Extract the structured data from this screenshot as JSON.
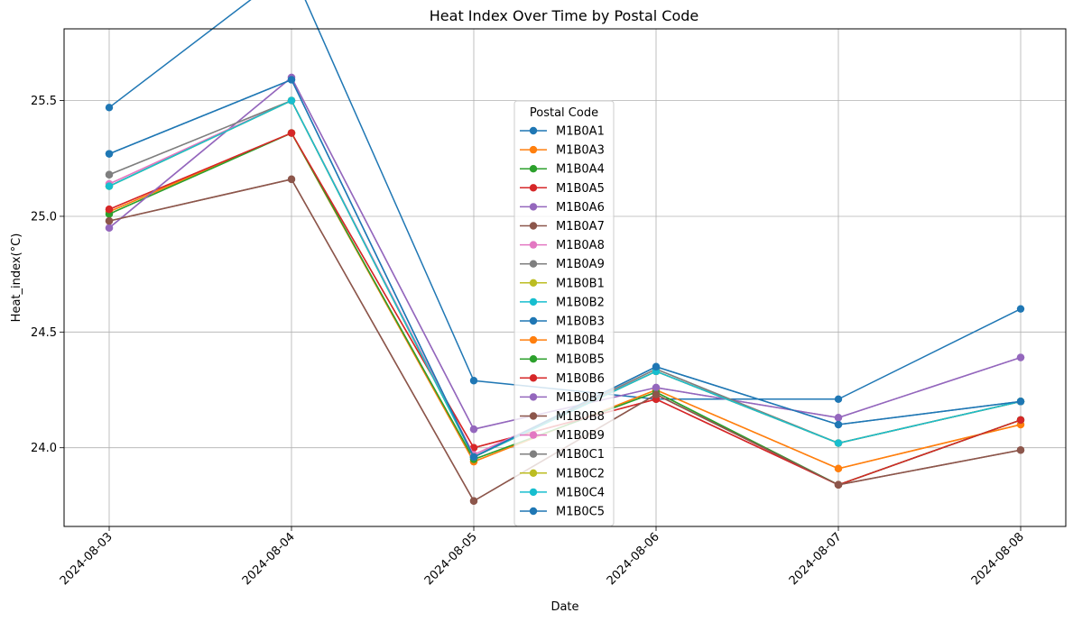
{
  "chart_data": {
    "type": "line",
    "title": "Heat Index Over Time by Postal Code",
    "xlabel": "Date",
    "ylabel": "Heat_index(°C)",
    "x": [
      "2024-08-03",
      "2024-08-04",
      "2024-08-05",
      "2024-08-06",
      "2024-08-07",
      "2024-08-08"
    ],
    "ylim": [
      23.66,
      25.81
    ],
    "yticks": [
      "24.0",
      "24.5",
      "25.0",
      "25.5",
      "26.0"
    ],
    "grid": true,
    "legend": {
      "title": "Postal Code",
      "placement": "center"
    },
    "marker": "circle",
    "series": [
      {
        "name": "M1B0A1",
        "color": "#1f77b4",
        "values": [
          25.47,
          26.07,
          24.29,
          24.21,
          24.21,
          24.6
        ]
      },
      {
        "name": "M1B0A3",
        "color": "#ff7f0e",
        "values": [
          25.02,
          25.36,
          23.94,
          24.25,
          23.91,
          24.1
        ]
      },
      {
        "name": "M1B0A4",
        "color": "#2ca02c",
        "values": [
          25.01,
          25.36,
          23.95,
          24.24,
          23.84,
          24.12
        ]
      },
      {
        "name": "M1B0A5",
        "color": "#d62728",
        "values": [
          25.03,
          25.36,
          24.0,
          24.21,
          23.84,
          24.12
        ]
      },
      {
        "name": "M1B0A6",
        "color": "#9467bd",
        "values": [
          24.95,
          25.6,
          24.08,
          24.26,
          24.13,
          24.39
        ]
      },
      {
        "name": "M1B0A7",
        "color": "#8c564b",
        "values": [
          24.98,
          25.16,
          23.77,
          24.23,
          23.84,
          23.99
        ]
      },
      {
        "name": "M1B0A8",
        "color": "#e377c2",
        "values": [
          25.14,
          25.5,
          23.97,
          24.33,
          24.02,
          24.2
        ]
      },
      {
        "name": "M1B0A9",
        "color": "#7f7f7f",
        "values": [
          25.18,
          25.5,
          23.96,
          24.34,
          24.02,
          24.2
        ]
      },
      {
        "name": "M1B0B1",
        "color": "#bcbd22",
        "values": [
          25.13,
          25.5,
          23.96,
          24.33,
          24.02,
          24.2
        ]
      },
      {
        "name": "M1B0B2",
        "color": "#17becf",
        "values": [
          25.13,
          25.5,
          23.96,
          24.33,
          24.02,
          24.2
        ]
      },
      {
        "name": "M1B0B3",
        "color": "#1f77b4",
        "values": [
          25.27,
          25.59,
          23.96,
          24.35,
          24.1,
          24.2
        ]
      },
      {
        "name": "M1B0B4",
        "color": "#ff7f0e",
        "values": [
          25.02,
          25.36,
          23.94,
          24.25,
          23.91,
          24.1
        ]
      },
      {
        "name": "M1B0B5",
        "color": "#2ca02c",
        "values": [
          25.01,
          25.36,
          23.95,
          24.24,
          23.84,
          24.12
        ]
      },
      {
        "name": "M1B0B6",
        "color": "#d62728",
        "values": [
          25.03,
          25.36,
          24.0,
          24.21,
          23.84,
          24.12
        ]
      },
      {
        "name": "M1B0B7",
        "color": "#9467bd",
        "values": [
          24.95,
          25.6,
          24.08,
          24.26,
          24.13,
          24.39
        ]
      },
      {
        "name": "M1B0B8",
        "color": "#8c564b",
        "values": [
          24.98,
          25.16,
          23.77,
          24.23,
          23.84,
          23.99
        ]
      },
      {
        "name": "M1B0B9",
        "color": "#e377c2",
        "values": [
          25.14,
          25.5,
          23.97,
          24.33,
          24.02,
          24.2
        ]
      },
      {
        "name": "M1B0C1",
        "color": "#7f7f7f",
        "values": [
          25.18,
          25.5,
          23.96,
          24.34,
          24.02,
          24.2
        ]
      },
      {
        "name": "M1B0C2",
        "color": "#bcbd22",
        "values": [
          25.13,
          25.5,
          23.96,
          24.33,
          24.02,
          24.2
        ]
      },
      {
        "name": "M1B0C4",
        "color": "#17becf",
        "values": [
          25.13,
          25.5,
          23.96,
          24.33,
          24.02,
          24.2
        ]
      },
      {
        "name": "M1B0C5",
        "color": "#1f77b4",
        "values": [
          25.27,
          25.59,
          23.96,
          24.35,
          24.1,
          24.2
        ]
      }
    ]
  }
}
